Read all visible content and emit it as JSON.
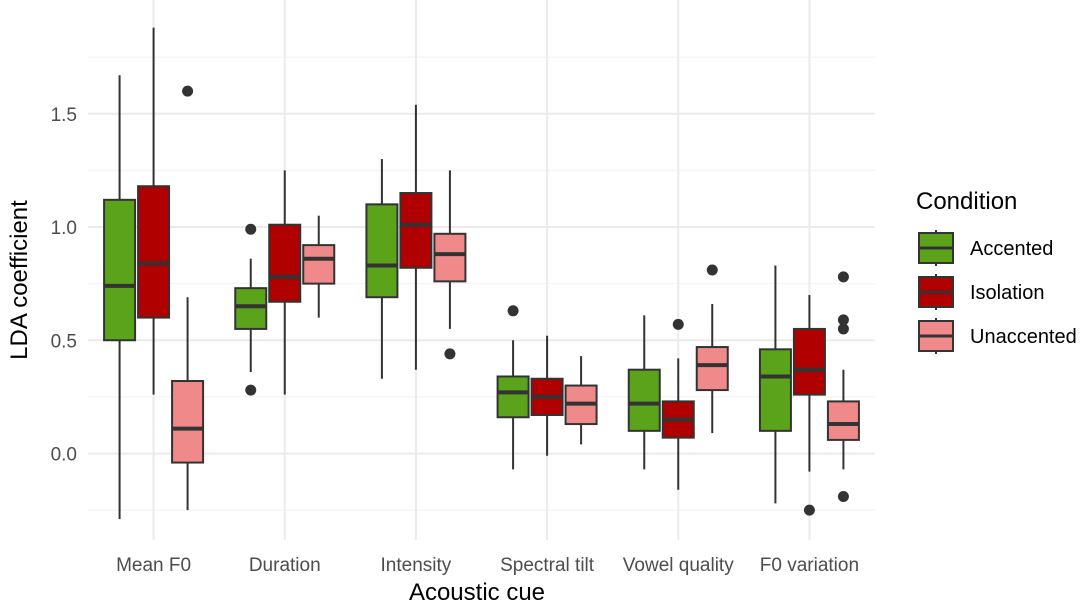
{
  "chart_data": {
    "type": "boxplot",
    "xlabel": "Acoustic cue",
    "ylabel": "LDA coefficient",
    "categories": [
      "Mean F0",
      "Duration",
      "Intensity",
      "Spectral tilt",
      "Vowel quality",
      "F0 variation"
    ],
    "ylim": [
      -0.3,
      1.9
    ],
    "yticks": [
      0.0,
      0.5,
      1.0,
      1.5
    ],
    "ytick_labels": [
      "0.0",
      "0.5",
      "1.0",
      "1.5"
    ],
    "grid": true,
    "legend": {
      "title": "Condition",
      "position": "right",
      "entries": [
        "Accented",
        "Isolation",
        "Unaccented"
      ]
    },
    "colors": {
      "Accented": "#5aa31a",
      "Isolation": "#b00000",
      "Unaccented": "#f08a8a",
      "outline": "#333333",
      "grid": "#ebebeb"
    },
    "series": [
      {
        "name": "Accented",
        "boxes": [
          {
            "min": -0.29,
            "q1": 0.5,
            "median": 0.74,
            "q3": 1.12,
            "max": 1.67,
            "outliers": []
          },
          {
            "min": 0.36,
            "q1": 0.55,
            "median": 0.65,
            "q3": 0.73,
            "max": 0.86,
            "outliers": [
              0.99,
              0.28
            ]
          },
          {
            "min": 0.33,
            "q1": 0.69,
            "median": 0.83,
            "q3": 1.1,
            "max": 1.3,
            "outliers": []
          },
          {
            "min": -0.07,
            "q1": 0.16,
            "median": 0.27,
            "q3": 0.34,
            "max": 0.5,
            "outliers": [
              0.63
            ]
          },
          {
            "min": -0.07,
            "q1": 0.1,
            "median": 0.22,
            "q3": 0.37,
            "max": 0.61,
            "outliers": []
          },
          {
            "min": -0.22,
            "q1": 0.1,
            "median": 0.34,
            "q3": 0.46,
            "max": 0.83,
            "outliers": []
          }
        ]
      },
      {
        "name": "Isolation",
        "boxes": [
          {
            "min": 0.26,
            "q1": 0.6,
            "median": 0.84,
            "q3": 1.18,
            "max": 1.88,
            "outliers": []
          },
          {
            "min": 0.26,
            "q1": 0.67,
            "median": 0.78,
            "q3": 1.01,
            "max": 1.25,
            "outliers": []
          },
          {
            "min": 0.37,
            "q1": 0.82,
            "median": 1.01,
            "q3": 1.15,
            "max": 1.54,
            "outliers": []
          },
          {
            "min": -0.01,
            "q1": 0.17,
            "median": 0.25,
            "q3": 0.33,
            "max": 0.52,
            "outliers": []
          },
          {
            "min": -0.16,
            "q1": 0.07,
            "median": 0.15,
            "q3": 0.23,
            "max": 0.42,
            "outliers": [
              0.57
            ]
          },
          {
            "min": -0.08,
            "q1": 0.26,
            "median": 0.37,
            "q3": 0.55,
            "max": 0.7,
            "outliers": [
              -0.25
            ]
          }
        ]
      },
      {
        "name": "Unaccented",
        "boxes": [
          {
            "min": -0.25,
            "q1": -0.04,
            "median": 0.11,
            "q3": 0.32,
            "max": 0.69,
            "outliers": [
              1.6
            ]
          },
          {
            "min": 0.6,
            "q1": 0.75,
            "median": 0.86,
            "q3": 0.92,
            "max": 1.05,
            "outliers": []
          },
          {
            "min": 0.55,
            "q1": 0.76,
            "median": 0.88,
            "q3": 0.97,
            "max": 1.25,
            "outliers": [
              0.44
            ]
          },
          {
            "min": 0.04,
            "q1": 0.13,
            "median": 0.22,
            "q3": 0.3,
            "max": 0.43,
            "outliers": []
          },
          {
            "min": 0.09,
            "q1": 0.28,
            "median": 0.39,
            "q3": 0.47,
            "max": 0.66,
            "outliers": [
              0.81
            ]
          },
          {
            "min": -0.07,
            "q1": 0.06,
            "median": 0.13,
            "q3": 0.23,
            "max": 0.37,
            "outliers": [
              0.78,
              0.59,
              0.55,
              -0.19
            ]
          }
        ]
      }
    ]
  }
}
